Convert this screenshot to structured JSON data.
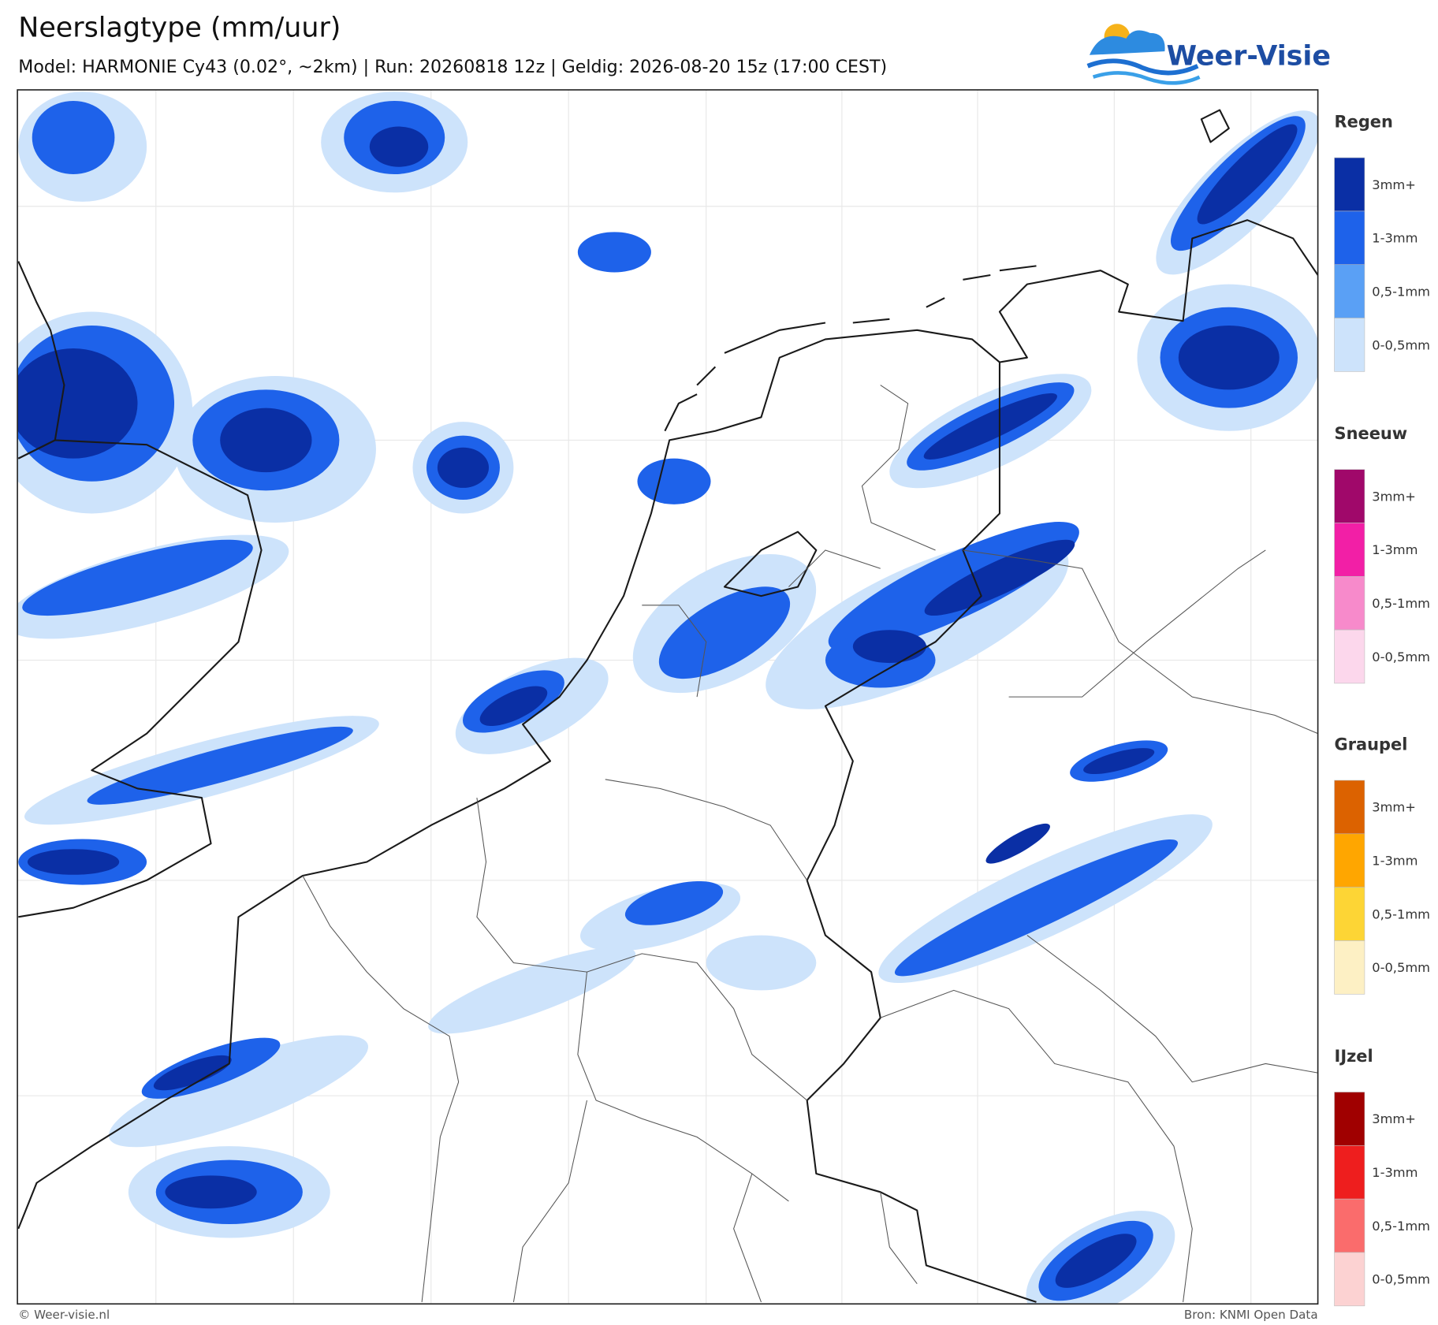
{
  "header": {
    "title": "Neerslagtype (mm/uur)",
    "subtitle": "Model: HARMONIE Cy43 (0.02°, ~2km)  |  Run: 20260818 12z  |  Geldig: 2026-08-20 15z (17:00 CEST)",
    "logo": "Weer-Visie"
  },
  "legend": {
    "sections": [
      {
        "title": "Regen",
        "items": [
          {
            "label": "3mm+",
            "color": "#0a2fa5"
          },
          {
            "label": "1-3mm",
            "color": "#1e62ea"
          },
          {
            "label": "0,5-1mm",
            "color": "#5aa0f5"
          },
          {
            "label": "0-0,5mm",
            "color": "#cde3fb"
          }
        ]
      },
      {
        "title": "Sneeuw",
        "items": [
          {
            "label": "3mm+",
            "color": "#a0086a"
          },
          {
            "label": "1-3mm",
            "color": "#f21fa6"
          },
          {
            "label": "0,5-1mm",
            "color": "#f78acb"
          },
          {
            "label": "0-0,5mm",
            "color": "#fcd7ec"
          }
        ]
      },
      {
        "title": "Graupel",
        "items": [
          {
            "label": "3mm+",
            "color": "#dc6200"
          },
          {
            "label": "1-3mm",
            "color": "#ffa600"
          },
          {
            "label": "0,5-1mm",
            "color": "#fdd535"
          },
          {
            "label": "0-0,5mm",
            "color": "#fdf0c4"
          }
        ]
      },
      {
        "title": "IJzel",
        "items": [
          {
            "label": "3mm+",
            "color": "#a00000"
          },
          {
            "label": "1-3mm",
            "color": "#ee1e1e"
          },
          {
            "label": "0,5-1mm",
            "color": "#fa6c6c"
          },
          {
            "label": "0-0,5mm",
            "color": "#fcd2d2"
          }
        ]
      }
    ]
  },
  "footer": {
    "left": "© Weer-visie.nl",
    "right": "Bron: KNMI Open Data"
  }
}
